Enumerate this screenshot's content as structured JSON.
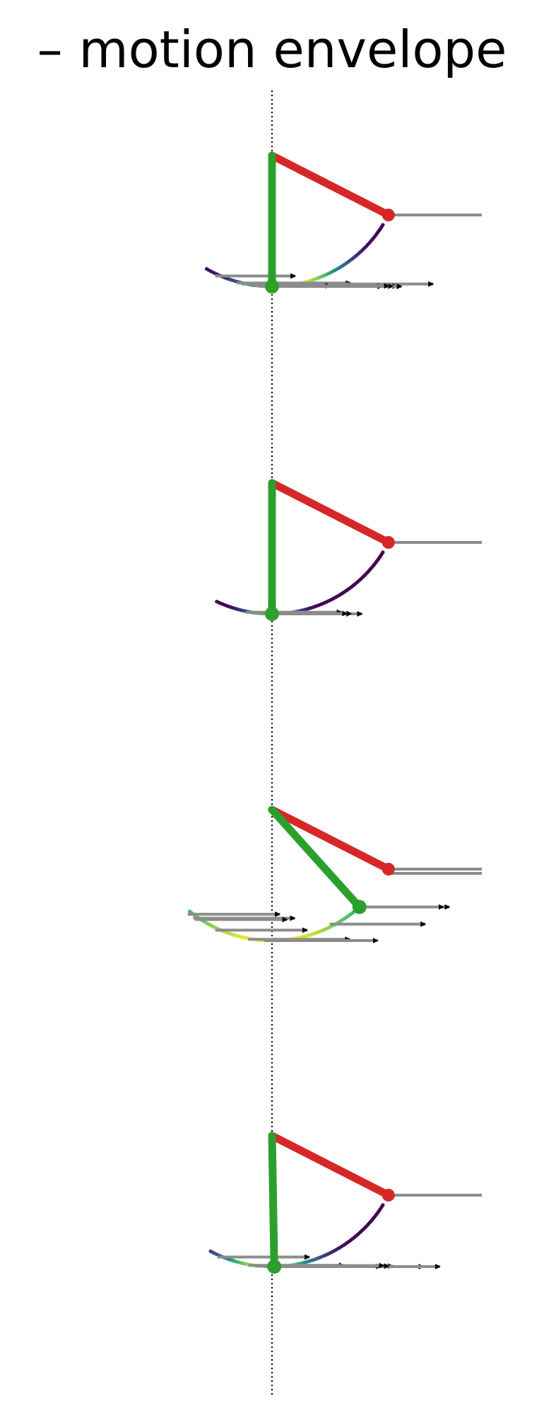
{
  "title": "– motion envelope",
  "colors": {
    "background": "#ffffff",
    "pendulum_rod": "#2ca02c",
    "crank_link": "#d62728",
    "force_arrow": "#8c8c8c",
    "arrow_head": "#000000",
    "axis_line": "#000000",
    "trail_colormap": "viridis"
  },
  "panels": [
    {
      "name": "panel-1",
      "crank_angle_deg": -27,
      "pendulum_angle_deg": 0,
      "trail_start_deg": -30,
      "trail_end_deg": 58,
      "trail_peak_deg": 10,
      "trail_spread_deg": 22,
      "arrows": [
        {
          "angle_deg": -23,
          "length": 0.62
        },
        {
          "angle_deg": -13,
          "length": 0.9
        },
        {
          "angle_deg": -11,
          "length": 1.55
        },
        {
          "angle_deg": -6,
          "length": 0.6
        },
        {
          "angle_deg": -3,
          "length": 1.1
        },
        {
          "angle_deg": 0,
          "length": 1.08
        },
        {
          "angle_deg": 1,
          "length": 0.9
        },
        {
          "angle_deg": 3,
          "length": 0.95
        },
        {
          "angle_deg": 5,
          "length": 0.88
        }
      ]
    },
    {
      "name": "panel-2",
      "crank_angle_deg": -27,
      "pendulum_angle_deg": 0,
      "trail_start_deg": -25,
      "trail_end_deg": 58,
      "trail_peak_deg": 0,
      "trail_spread_deg": 10,
      "arrows": [
        {
          "angle_deg": -9,
          "length": 0.75
        },
        {
          "angle_deg": -3,
          "length": 0.72
        },
        {
          "angle_deg": 0,
          "length": 0.75
        },
        {
          "angle_deg": 2,
          "length": 0.62
        },
        {
          "angle_deg": 4,
          "length": 0.55
        }
      ]
    },
    {
      "name": "panel-3",
      "crank_angle_deg": -27,
      "pendulum_angle_deg": 42,
      "trail_start_deg": -39,
      "trail_end_deg": 42,
      "trail_peak_deg": 0,
      "trail_spread_deg": 60,
      "arrows": [
        {
          "angle_deg": -37,
          "length": 0.72
        },
        {
          "angle_deg": -34,
          "length": 0.8
        },
        {
          "angle_deg": -33,
          "length": 0.72
        },
        {
          "angle_deg": -23,
          "length": 0.72
        },
        {
          "angle_deg": -8,
          "length": 0.8
        },
        {
          "angle_deg": -1,
          "length": 0.9
        },
        {
          "angle_deg": 29,
          "length": 0.75
        },
        {
          "angle_deg": 42,
          "length": 0.75
        },
        {
          "angle_deg": 42,
          "length": 0.7
        }
      ]
    },
    {
      "name": "panel-4",
      "crank_angle_deg": -27,
      "pendulum_angle_deg": 1,
      "trail_start_deg": -28,
      "trail_end_deg": 58,
      "trail_peak_deg": -2,
      "trail_spread_deg": 20,
      "arrows": [
        {
          "angle_deg": -22,
          "length": 0.72
        },
        {
          "angle_deg": -8,
          "length": 0.75
        },
        {
          "angle_deg": -5,
          "length": 1.1
        },
        {
          "angle_deg": -1,
          "length": 1.28
        },
        {
          "angle_deg": 1,
          "length": 1.38
        },
        {
          "angle_deg": 3,
          "length": 0.85
        },
        {
          "angle_deg": 5,
          "length": 0.88
        },
        {
          "angle_deg": 7,
          "length": 0.8
        }
      ]
    }
  ]
}
